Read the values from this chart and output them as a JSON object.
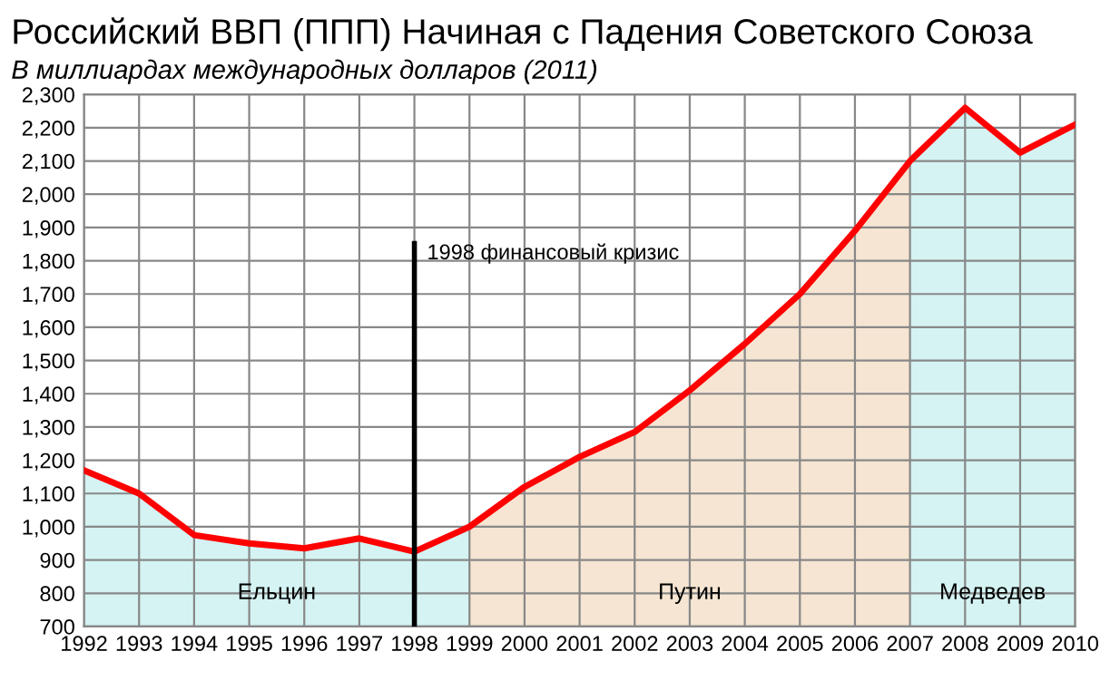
{
  "chart_data": {
    "type": "line",
    "title": "Российский ВВП (ППП) Начиная с Падения Советского Союза",
    "subtitle": "В миллиардах международных долларов (2011)",
    "x": [
      1992,
      1993,
      1994,
      1995,
      1996,
      1997,
      1998,
      1999,
      2000,
      2001,
      2002,
      2003,
      2004,
      2005,
      2006,
      2007,
      2008,
      2009,
      2010
    ],
    "series": [
      {
        "type": "area",
        "color": "#d5f3f3",
        "x": [
          1992,
          1993,
          1994,
          1995,
          1996,
          1997,
          1998,
          1999
        ],
        "values": [
          1170,
          1100,
          975,
          950,
          935,
          965,
          925,
          1000
        ]
      },
      {
        "type": "area",
        "color": "#f5e5d2",
        "x": [
          1999,
          2000,
          2001,
          2002,
          2003,
          2004,
          2005,
          2006,
          2007
        ],
        "values": [
          1000,
          1120,
          1210,
          1285,
          1410,
          1550,
          1700,
          1890,
          2100
        ]
      },
      {
        "type": "area",
        "color": "#d5f3f3",
        "x": [
          2007,
          2008,
          2009,
          2010
        ],
        "values": [
          2100,
          2260,
          2125,
          2210
        ]
      },
      {
        "type": "line",
        "color": "#ff0000",
        "values": [
          1170,
          1100,
          975,
          950,
          935,
          965,
          925,
          1000,
          1120,
          1210,
          1285,
          1410,
          1550,
          1700,
          1890,
          2100,
          2260,
          2125,
          2210
        ]
      }
    ],
    "xlim": [
      1992,
      2010
    ],
    "xticks": [
      1992,
      1993,
      1994,
      1995,
      1996,
      1997,
      1998,
      1999,
      2000,
      2001,
      2002,
      2003,
      2004,
      2005,
      2006,
      2007,
      2008,
      2009,
      2010
    ],
    "ylim": [
      700,
      2300
    ],
    "yticks": [
      {
        "value": 700,
        "label": "700"
      },
      {
        "value": 800,
        "label": "800"
      },
      {
        "value": 900,
        "label": "900"
      },
      {
        "value": 1000,
        "label": "1,000"
      },
      {
        "value": 1100,
        "label": "1,100"
      },
      {
        "value": 1200,
        "label": "1,200"
      },
      {
        "value": 1300,
        "label": "1,300"
      },
      {
        "value": 1400,
        "label": "1,400"
      },
      {
        "value": 1500,
        "label": "1,500"
      },
      {
        "value": 1600,
        "label": "1,600"
      },
      {
        "value": 1700,
        "label": "1,700"
      },
      {
        "value": 1800,
        "label": "1,800"
      },
      {
        "value": 1900,
        "label": "1,900"
      },
      {
        "value": 2000,
        "label": "2,000"
      },
      {
        "value": 2100,
        "label": "2,100"
      },
      {
        "value": 2200,
        "label": "2,200"
      },
      {
        "value": 2300,
        "label": "2,300"
      }
    ],
    "grid": true,
    "ref_lines": [
      {
        "axis": "x",
        "value": 1998,
        "label": "1998 финансовый кризис",
        "color": "#000000"
      }
    ],
    "annotations": [
      "Ельцин",
      "Путин",
      "Медведев"
    ]
  }
}
